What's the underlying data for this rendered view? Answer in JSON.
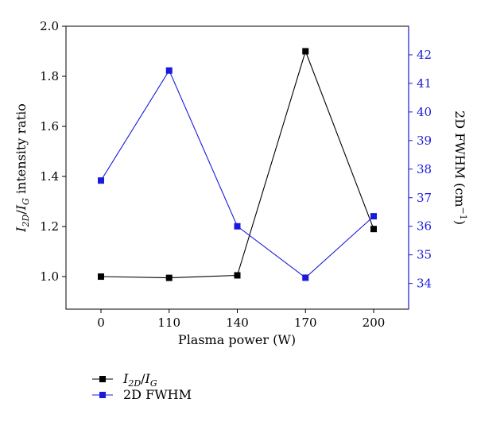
{
  "chart_data": {
    "type": "line",
    "xlabel": "Plasma power (W)",
    "categories": [
      "0",
      "110",
      "140",
      "170",
      "200"
    ],
    "ylabel_left": {
      "main": "I",
      "sub1": "2D",
      "mid": "/",
      "main2": "I",
      "sub2": "G",
      "rest": " intensity ratio"
    },
    "ylabel_right": {
      "text": "2D FWHM (cm",
      "sup": "−1",
      "end": ")"
    },
    "y_left_lim": [
      0.87,
      2.0
    ],
    "y_left_ticks": [
      "1.0",
      "1.2",
      "1.4",
      "1.6",
      "1.8",
      "2.0"
    ],
    "y_right_lim": [
      33.1,
      43.0
    ],
    "y_right_ticks": [
      "34",
      "35",
      "36",
      "37",
      "38",
      "39",
      "40",
      "41",
      "42"
    ],
    "grid": false,
    "legend_position": "bottom-left, below plot",
    "series": [
      {
        "name": "I2D/IG",
        "legend": {
          "main": "I",
          "sub1": "2D",
          "mid": "/",
          "main2": "I",
          "sub2": "G"
        },
        "axis": "left",
        "color": "#000000",
        "marker": "square",
        "values": [
          1.0,
          0.995,
          1.005,
          1.9,
          1.19
        ]
      },
      {
        "name": "2D FWHM",
        "legend_text": "2D FWHM",
        "axis": "right",
        "color": "#1a1adb",
        "marker": "square",
        "values": [
          37.6,
          41.45,
          36.0,
          34.2,
          36.35
        ]
      }
    ]
  }
}
